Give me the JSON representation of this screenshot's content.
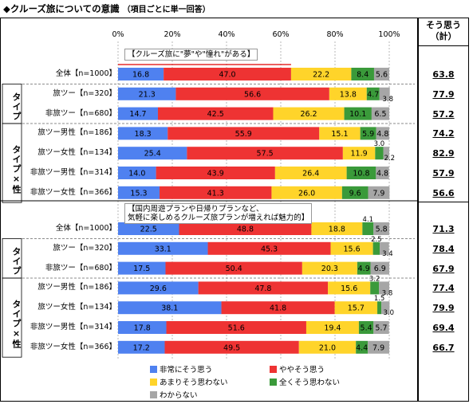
{
  "title": "◆クルーズ旅についての意識",
  "subtitle": "（項目ごとに単一回答）",
  "side_header": [
    "そう思う",
    "（計）"
  ],
  "colors": {
    "s1": "#4f81f0",
    "s2": "#ee3333",
    "s3": "#ffd42a",
    "s4": "#3a9a3a",
    "s5": "#a6a6a6",
    "ref_line": "#e00000"
  },
  "chart_data": {
    "type": "stacked-bar-horizontal",
    "xlim": [
      0,
      100
    ],
    "xticks": [
      "0%",
      "20%",
      "40%",
      "60%",
      "80%",
      "100%"
    ],
    "series_names": [
      "非常にそう思う",
      "ややそう思う",
      "あまりそう思わない",
      "全くそう思わない",
      "わからない"
    ],
    "group_labels": [
      "タイプ",
      "タイプ×性"
    ],
    "panels": [
      {
        "label": "【クルーズ旅に\"夢\"や\"憧れ\"がある】",
        "rows": [
          {
            "label": "全体【n=1000】",
            "values": [
              16.8,
              47.0,
              22.2,
              8.4,
              5.6
            ],
            "total": "63.8"
          },
          {
            "label": "旅ツー【n=320】",
            "values": [
              21.3,
              56.6,
              13.8,
              4.7,
              3.8
            ],
            "total": "77.9"
          },
          {
            "label": "非旅ツー【n=680】",
            "values": [
              14.7,
              42.5,
              26.2,
              10.1,
              6.5
            ],
            "total": "57.2"
          },
          {
            "label": "旅ツー男性【n=186】",
            "values": [
              18.3,
              55.9,
              15.1,
              5.9,
              4.8
            ],
            "total": "74.2"
          },
          {
            "label": "旅ツー女性【n=134】",
            "values": [
              25.4,
              57.5,
              11.9,
              3.0,
              2.2
            ],
            "total": "82.9"
          },
          {
            "label": "非旅ツー男性【n=314】",
            "values": [
              14.0,
              43.9,
              26.4,
              10.8,
              4.8
            ],
            "total": "57.9"
          },
          {
            "label": "非旅ツー女性【n=366】",
            "values": [
              15.3,
              41.3,
              26.0,
              9.6,
              7.9
            ],
            "total": "56.6"
          }
        ]
      },
      {
        "label": "【国内周遊プランや日帰りプランなど、\n気軽に楽しめるクルーズ旅プランが増えれば魅力的】",
        "rows": [
          {
            "label": "全体【n=1000】",
            "values": [
              22.5,
              48.8,
              18.8,
              4.1,
              5.8
            ],
            "total": "71.3"
          },
          {
            "label": "旅ツー【n=320】",
            "values": [
              33.1,
              45.3,
              15.6,
              2.5,
              3.4
            ],
            "total": "78.4"
          },
          {
            "label": "非旅ツー【n=680】",
            "values": [
              17.5,
              50.4,
              20.3,
              4.9,
              6.9
            ],
            "total": "67.9"
          },
          {
            "label": "旅ツー男性【n=186】",
            "values": [
              29.6,
              47.8,
              15.6,
              3.2,
              3.8
            ],
            "total": "77.4"
          },
          {
            "label": "旅ツー女性【n=134】",
            "values": [
              38.1,
              41.8,
              15.7,
              1.5,
              3.0
            ],
            "total": "79.9"
          },
          {
            "label": "非旅ツー男性【n=314】",
            "values": [
              17.8,
              51.6,
              19.4,
              5.4,
              5.7
            ],
            "total": "69.4"
          },
          {
            "label": "非旅ツー女性【n=366】",
            "values": [
              17.2,
              49.5,
              21.0,
              4.4,
              7.9
            ],
            "total": "66.7"
          }
        ]
      }
    ]
  }
}
